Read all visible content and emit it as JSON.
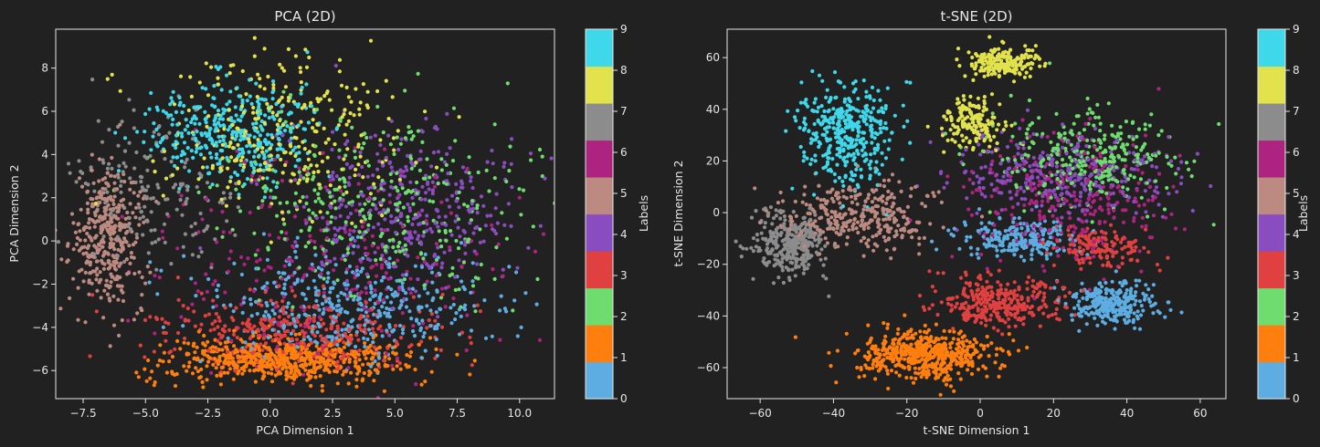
{
  "chart_data": [
    {
      "type": "scatter",
      "title": "PCA (2D)",
      "xlabel": "PCA Dimension 1",
      "ylabel": "PCA Dimension 2",
      "xlim": [
        -8.6,
        11.4
      ],
      "ylim": [
        -7.3,
        9.8
      ],
      "xticks": [
        "−7.5",
        "−5.0",
        "−2.5",
        "0.0",
        "2.5",
        "5.0",
        "7.5",
        "10.0"
      ],
      "xtick_values": [
        -7.5,
        -5.0,
        -2.5,
        0.0,
        2.5,
        5.0,
        7.5,
        10.0
      ],
      "yticks": [
        "−6",
        "−4",
        "−2",
        "0",
        "2",
        "4",
        "6",
        "8"
      ],
      "ytick_values": [
        -6,
        -4,
        -2,
        0,
        2,
        4,
        6,
        8
      ],
      "grid": false,
      "colorbar": {
        "label": "Labels",
        "ticks": [
          "0",
          "1",
          "2",
          "3",
          "4",
          "5",
          "6",
          "7",
          "8",
          "9"
        ]
      },
      "clusters": [
        {
          "label": 0,
          "cx": 3.0,
          "cy": -3.0,
          "sx": 3.0,
          "sy": 1.2,
          "n": 420
        },
        {
          "label": 1,
          "cx": 0.5,
          "cy": -5.5,
          "sx": 2.4,
          "sy": 0.5,
          "n": 620
        },
        {
          "label": 2,
          "cx": 4.5,
          "cy": 1.5,
          "sx": 3.0,
          "sy": 2.2,
          "n": 330
        },
        {
          "label": 3,
          "cx": 1.0,
          "cy": -4.3,
          "sx": 3.0,
          "sy": 0.8,
          "n": 360
        },
        {
          "label": 4,
          "cx": 5.5,
          "cy": 1.5,
          "sx": 2.4,
          "sy": 1.9,
          "n": 380
        },
        {
          "label": 5,
          "cx": -6.5,
          "cy": 0.0,
          "sx": 0.7,
          "sy": 1.6,
          "n": 360
        },
        {
          "label": 6,
          "cx": 2.5,
          "cy": -1.0,
          "sx": 3.6,
          "sy": 2.4,
          "n": 260
        },
        {
          "label": 7,
          "cx": -4.5,
          "cy": 2.3,
          "sx": 1.7,
          "sy": 1.6,
          "n": 180
        },
        {
          "label": 8,
          "cx": 0.5,
          "cy": 4.8,
          "sx": 2.5,
          "sy": 1.8,
          "n": 300
        },
        {
          "label": 9,
          "cx": -1.5,
          "cy": 5.0,
          "sx": 1.8,
          "sy": 1.2,
          "n": 380
        }
      ]
    },
    {
      "type": "scatter",
      "title": "t-SNE (2D)",
      "xlabel": "t-SNE Dimension 1",
      "ylabel": "t-SNE Dimension 2",
      "xlim": [
        -69,
        67
      ],
      "ylim": [
        -72,
        71
      ],
      "xticks": [
        "−60",
        "−40",
        "−20",
        "0",
        "20",
        "40",
        "60"
      ],
      "xtick_values": [
        -60,
        -40,
        -20,
        0,
        20,
        40,
        60
      ],
      "yticks": [
        "−60",
        "−40",
        "−20",
        "0",
        "20",
        "40",
        "60"
      ],
      "ytick_values": [
        -60,
        -40,
        -20,
        0,
        20,
        40,
        60
      ],
      "grid": false,
      "colorbar": {
        "label": "Labels",
        "ticks": [
          "0",
          "1",
          "2",
          "3",
          "4",
          "5",
          "6",
          "7",
          "8",
          "9"
        ]
      },
      "clusters": [
        {
          "label": 0,
          "cx": 36,
          "cy": -35,
          "sx": 6,
          "sy": 4,
          "n": 300
        },
        {
          "label": 0,
          "cx": 12,
          "cy": -10,
          "sx": 8,
          "sy": 4,
          "n": 220
        },
        {
          "label": 1,
          "cx": -15,
          "cy": -55,
          "sx": 9,
          "sy": 4.5,
          "n": 560
        },
        {
          "label": 2,
          "cx": 30,
          "cy": 22,
          "sx": 12,
          "sy": 9,
          "n": 300
        },
        {
          "label": 3,
          "cx": 5,
          "cy": -35,
          "sx": 8,
          "sy": 5,
          "n": 320
        },
        {
          "label": 3,
          "cx": 32,
          "cy": -14,
          "sx": 6,
          "sy": 4,
          "n": 140
        },
        {
          "label": 4,
          "cx": 22,
          "cy": 15,
          "sx": 15,
          "sy": 9,
          "n": 320
        },
        {
          "label": 5,
          "cx": -32,
          "cy": -2,
          "sx": 10,
          "sy": 7,
          "n": 340
        },
        {
          "label": 6,
          "cx": 25,
          "cy": 5,
          "sx": 14,
          "sy": 12,
          "n": 280
        },
        {
          "label": 7,
          "cx": -52,
          "cy": -12,
          "sx": 5,
          "sy": 6,
          "n": 320
        },
        {
          "label": 8,
          "cx": 6,
          "cy": 58,
          "sx": 5,
          "sy": 3,
          "n": 200
        },
        {
          "label": 8,
          "cx": -2,
          "cy": 34,
          "sx": 4,
          "sy": 5,
          "n": 160
        },
        {
          "label": 9,
          "cx": -36,
          "cy": 30,
          "sx": 6,
          "sy": 10,
          "n": 380
        }
      ]
    }
  ],
  "label_colors": [
    "#5dade2",
    "#ff7f0e",
    "#6fdc6f",
    "#e04040",
    "#8a4dbf",
    "#bc8a80",
    "#ad2380",
    "#8c8c8c",
    "#e2e24c",
    "#3fd8ea"
  ]
}
